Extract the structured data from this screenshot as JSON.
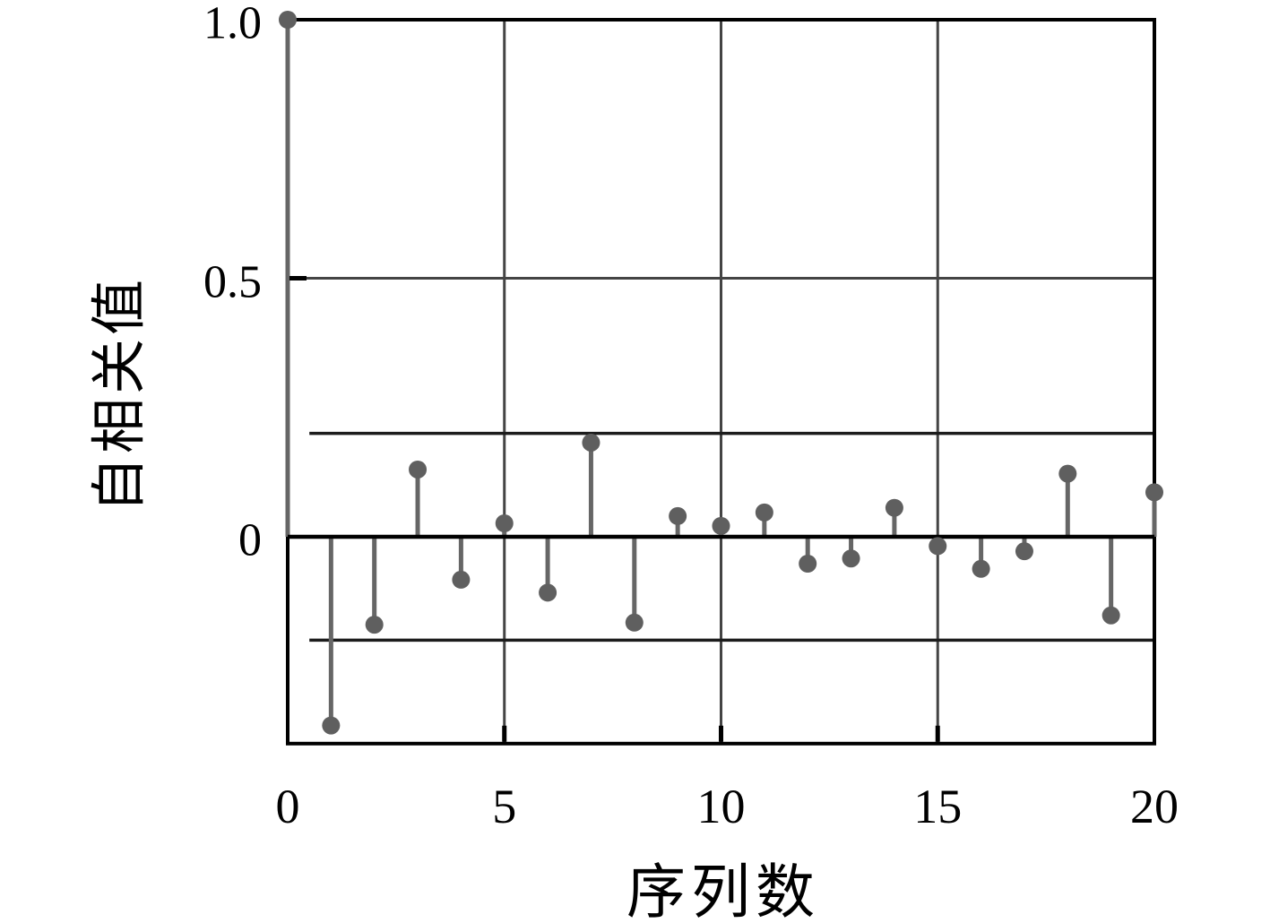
{
  "chart_data": {
    "type": "stem",
    "title": "",
    "xlabel": "序列数",
    "ylabel": "自相关值",
    "x": [
      0,
      1,
      2,
      3,
      4,
      5,
      6,
      7,
      8,
      9,
      10,
      11,
      12,
      13,
      14,
      15,
      16,
      17,
      18,
      19,
      20
    ],
    "values": [
      1.0,
      -0.365,
      -0.17,
      0.13,
      -0.083,
      0.026,
      -0.108,
      0.182,
      -0.166,
      0.04,
      0.021,
      0.047,
      -0.052,
      -0.042,
      0.056,
      -0.018,
      -0.062,
      -0.028,
      0.122,
      -0.152,
      0.086
    ],
    "confidence_bounds": {
      "upper": 0.2,
      "lower": -0.2,
      "x_start": 0.5,
      "x_end": 20
    },
    "xlim": [
      0,
      20
    ],
    "ylim": [
      -0.4,
      1.0
    ],
    "xticks": {
      "values": [
        0,
        5,
        10,
        15,
        20
      ],
      "labels": [
        "0",
        "5",
        "10",
        "15",
        "20"
      ]
    },
    "yticks": {
      "values": [
        0,
        0.5,
        1.0
      ],
      "labels": [
        "0",
        "0.5",
        "1.0"
      ]
    },
    "grid": {
      "x_values": [
        5,
        10,
        15
      ],
      "y_values": [
        0.5
      ]
    },
    "legend": null,
    "colors": {
      "background": "#ffffff",
      "stem": "#666666",
      "marker": "#5f5f5f",
      "grid": "#444444",
      "confidence_line": "#1c1c1c",
      "axis": "#000000"
    }
  }
}
